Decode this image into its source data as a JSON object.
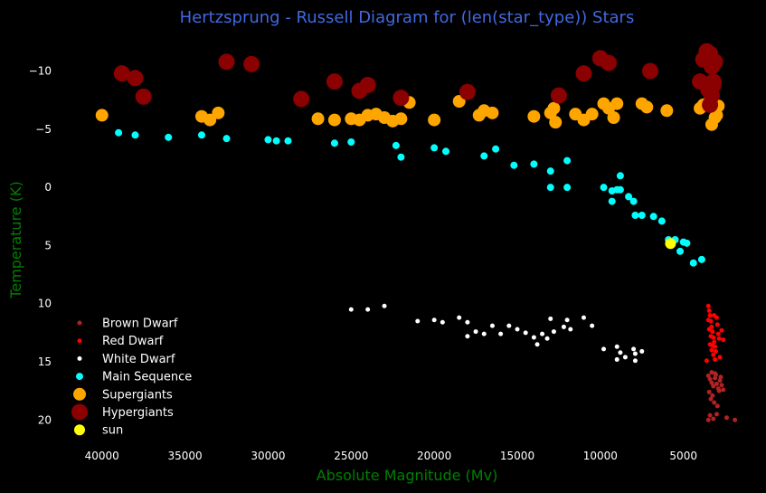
{
  "chart_data": {
    "type": "scatter",
    "title": "Hertzsprung - Russell Diagram for (len(star_type)) Stars",
    "xlabel": "Absolute Magnitude (Mv)",
    "ylabel": "Temperature (K)",
    "xlim": [
      42000,
      1500
    ],
    "ylim": [
      22,
      -13
    ],
    "x_ticks": [
      40000,
      35000,
      30000,
      25000,
      20000,
      15000,
      10000,
      5000
    ],
    "y_ticks": [
      -10,
      -5,
      0,
      5,
      10,
      15,
      20
    ],
    "legend_position": "lower-left",
    "background": "#000000",
    "series": [
      {
        "name": "Brown Dwarf",
        "color": "#b22222",
        "size": 2.5,
        "points": [
          [
            3500,
            16.2
          ],
          [
            3400,
            16.5
          ],
          [
            3300,
            16.8
          ],
          [
            3200,
            17.1
          ],
          [
            3100,
            16.4
          ],
          [
            3000,
            16.9
          ],
          [
            2900,
            17.3
          ],
          [
            2800,
            16.6
          ],
          [
            2700,
            17.0
          ],
          [
            3450,
            17.6
          ],
          [
            3250,
            17.9
          ],
          [
            3050,
            16.1
          ],
          [
            2850,
            17.5
          ],
          [
            2750,
            16.3
          ],
          [
            3350,
            18.2
          ],
          [
            3150,
            18.5
          ],
          [
            2950,
            18.8
          ],
          [
            3400,
            19.6
          ],
          [
            3200,
            19.9
          ],
          [
            3000,
            19.5
          ],
          [
            2600,
            17.4
          ],
          [
            2400,
            19.8
          ],
          [
            1900,
            20.0
          ],
          [
            3500,
            20.0
          ],
          [
            3300,
            15.9
          ],
          [
            3100,
            16.0
          ]
        ]
      },
      {
        "name": "Red Dwarf",
        "color": "#ff0000",
        "size": 2.5,
        "points": [
          [
            3500,
            10.2
          ],
          [
            3450,
            10.6
          ],
          [
            3400,
            11.0
          ],
          [
            3350,
            11.5
          ],
          [
            3300,
            12.0
          ],
          [
            3250,
            12.4
          ],
          [
            3200,
            12.9
          ],
          [
            3150,
            13.3
          ],
          [
            3100,
            13.7
          ],
          [
            3050,
            14.1
          ],
          [
            3000,
            11.2
          ],
          [
            2950,
            11.8
          ],
          [
            2900,
            12.6
          ],
          [
            2850,
            13.0
          ],
          [
            3400,
            13.5
          ],
          [
            3300,
            14.0
          ],
          [
            3200,
            14.4
          ],
          [
            3100,
            14.8
          ],
          [
            3500,
            11.4
          ],
          [
            3450,
            12.2
          ],
          [
            3350,
            12.8
          ],
          [
            3250,
            13.6
          ],
          [
            3150,
            11.0
          ],
          [
            2800,
            14.6
          ],
          [
            2700,
            12.3
          ],
          [
            3600,
            14.9
          ],
          [
            2600,
            13.1
          ]
        ]
      },
      {
        "name": "White Dwarf",
        "color": "#ffffff",
        "size": 2.5,
        "points": [
          [
            25000,
            10.5
          ],
          [
            24000,
            10.5
          ],
          [
            23000,
            10.2
          ],
          [
            21000,
            11.5
          ],
          [
            20000,
            11.4
          ],
          [
            19500,
            11.6
          ],
          [
            18500,
            11.2
          ],
          [
            18000,
            11.6
          ],
          [
            17500,
            12.4
          ],
          [
            17000,
            12.6
          ],
          [
            16500,
            11.9
          ],
          [
            16000,
            12.6
          ],
          [
            15500,
            11.9
          ],
          [
            15000,
            12.2
          ],
          [
            14500,
            12.5
          ],
          [
            14000,
            12.9
          ],
          [
            13500,
            12.6
          ],
          [
            13200,
            13.0
          ],
          [
            13000,
            11.3
          ],
          [
            12800,
            12.4
          ],
          [
            12200,
            12.0
          ],
          [
            12000,
            11.4
          ],
          [
            11800,
            12.2
          ],
          [
            11000,
            11.2
          ],
          [
            10500,
            11.9
          ],
          [
            13800,
            13.5
          ],
          [
            9800,
            13.9
          ],
          [
            9000,
            13.7
          ],
          [
            8800,
            14.2
          ],
          [
            8500,
            14.6
          ],
          [
            8000,
            13.9
          ],
          [
            7900,
            14.3
          ],
          [
            7500,
            14.1
          ],
          [
            9000,
            14.8
          ],
          [
            7900,
            14.9
          ],
          [
            18000,
            12.8
          ]
        ]
      },
      {
        "name": "Main Sequence",
        "color": "#00ffff",
        "size": 4,
        "points": [
          [
            39000,
            -4.7
          ],
          [
            38000,
            -4.5
          ],
          [
            36000,
            -4.3
          ],
          [
            34000,
            -4.5
          ],
          [
            32500,
            -4.2
          ],
          [
            30000,
            -4.1
          ],
          [
            29500,
            -4.0
          ],
          [
            28800,
            -4.0
          ],
          [
            26000,
            -3.8
          ],
          [
            25000,
            -3.9
          ],
          [
            22300,
            -3.6
          ],
          [
            22000,
            -2.6
          ],
          [
            20000,
            -3.4
          ],
          [
            19300,
            -3.1
          ],
          [
            17000,
            -2.7
          ],
          [
            16300,
            -3.3
          ],
          [
            15200,
            -1.9
          ],
          [
            14000,
            -2.0
          ],
          [
            13000,
            -1.4
          ],
          [
            12000,
            -2.3
          ],
          [
            8800,
            -1.0
          ],
          [
            13000,
            0.0
          ],
          [
            12000,
            0.0
          ],
          [
            9800,
            -0.0
          ],
          [
            9300,
            0.3
          ],
          [
            9000,
            0.2
          ],
          [
            8800,
            0.2
          ],
          [
            8300,
            0.8
          ],
          [
            8000,
            1.2
          ],
          [
            9300,
            1.2
          ],
          [
            7900,
            2.4
          ],
          [
            7500,
            2.4
          ],
          [
            6800,
            2.5
          ],
          [
            6300,
            2.9
          ],
          [
            5900,
            4.5
          ],
          [
            5500,
            4.5
          ],
          [
            5000,
            4.7
          ],
          [
            4800,
            4.8
          ],
          [
            5200,
            5.5
          ],
          [
            4400,
            6.5
          ],
          [
            3900,
            6.2
          ],
          [
            5700,
            4.7
          ]
        ]
      },
      {
        "name": "Supergiants",
        "color": "#ffa500",
        "size": 7,
        "points": [
          [
            40000,
            -6.2
          ],
          [
            34000,
            -6.1
          ],
          [
            33500,
            -5.8
          ],
          [
            33000,
            -6.4
          ],
          [
            27000,
            -5.9
          ],
          [
            26000,
            -5.8
          ],
          [
            25000,
            -5.9
          ],
          [
            24500,
            -5.8
          ],
          [
            24000,
            -6.2
          ],
          [
            23500,
            -6.3
          ],
          [
            23000,
            -6.0
          ],
          [
            22500,
            -5.7
          ],
          [
            22000,
            -5.9
          ],
          [
            21500,
            -7.3
          ],
          [
            20000,
            -5.8
          ],
          [
            18500,
            -7.4
          ],
          [
            17300,
            -6.2
          ],
          [
            17000,
            -6.6
          ],
          [
            16500,
            -6.4
          ],
          [
            14000,
            -6.1
          ],
          [
            13000,
            -6.4
          ],
          [
            12800,
            -6.8
          ],
          [
            12700,
            -5.6
          ],
          [
            11500,
            -6.3
          ],
          [
            11000,
            -5.8
          ],
          [
            10500,
            -6.3
          ],
          [
            9800,
            -7.2
          ],
          [
            9500,
            -6.8
          ],
          [
            9200,
            -6.0
          ],
          [
            9000,
            -7.2
          ],
          [
            7500,
            -7.2
          ],
          [
            7200,
            -6.9
          ],
          [
            6000,
            -6.6
          ],
          [
            4000,
            -6.8
          ],
          [
            3800,
            -7.1
          ],
          [
            3500,
            -7.3
          ],
          [
            3300,
            -5.4
          ],
          [
            3100,
            -6.0
          ],
          [
            3000,
            -6.2
          ],
          [
            2900,
            -7.0
          ]
        ]
      },
      {
        "name": "Hypergiants",
        "color": "#8b0000",
        "size": 9,
        "points": [
          [
            38800,
            -9.8
          ],
          [
            38000,
            -9.4
          ],
          [
            37500,
            -7.8
          ],
          [
            32500,
            -10.8
          ],
          [
            31000,
            -10.6
          ],
          [
            28000,
            -7.6
          ],
          [
            26000,
            -9.1
          ],
          [
            24500,
            -8.3
          ],
          [
            24000,
            -8.8
          ],
          [
            22000,
            -7.7
          ],
          [
            18000,
            -8.2
          ],
          [
            12500,
            -7.9
          ],
          [
            11000,
            -9.8
          ],
          [
            10000,
            -11.1
          ],
          [
            9500,
            -10.7
          ],
          [
            7000,
            -10.0
          ],
          [
            4000,
            -9.1
          ],
          [
            3800,
            -11.0
          ],
          [
            3600,
            -11.7
          ],
          [
            3500,
            -10.9
          ],
          [
            3400,
            -11.5
          ],
          [
            3300,
            -10.4
          ],
          [
            3200,
            -9.1
          ],
          [
            3500,
            -8.4
          ],
          [
            3300,
            -7.9
          ],
          [
            3400,
            -7.1
          ],
          [
            3200,
            -8.8
          ],
          [
            3100,
            -10.8
          ]
        ]
      },
      {
        "name": "sun",
        "color": "#ffff00",
        "size": 6,
        "points": [
          [
            5778,
            4.83
          ]
        ]
      }
    ]
  }
}
